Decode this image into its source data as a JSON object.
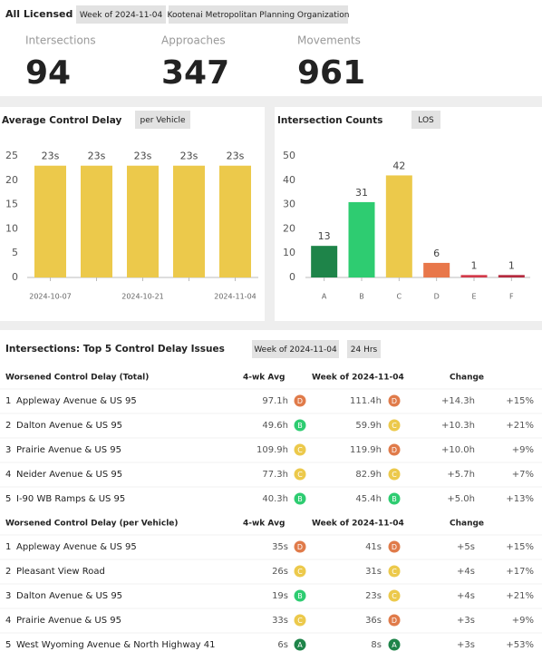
{
  "header": {
    "title": "All Licensed",
    "tags": [
      "Week of 2024-11-04",
      "Kootenai Metropolitan Planning Organization"
    ]
  },
  "kpis": [
    {
      "label": "Intersections",
      "value": "94"
    },
    {
      "label": "Approaches",
      "value": "347"
    },
    {
      "label": "Movements",
      "value": "961"
    }
  ],
  "chart_data": [
    {
      "type": "bar",
      "title": "Average Control Delay",
      "tag": "per Vehicle",
      "categories": [
        "2024-10-07",
        null,
        "2024-10-21",
        null,
        "2024-11-04"
      ],
      "values": [
        23,
        23,
        23,
        23,
        23
      ],
      "value_labels": [
        "23s",
        "23s",
        "23s",
        "23s",
        "23s"
      ],
      "color": "#ecc94b",
      "ylim": [
        0,
        25
      ],
      "yticks": [
        0,
        5,
        10,
        15,
        20,
        25
      ]
    },
    {
      "type": "bar",
      "title": "Intersection Counts",
      "tag": "LOS",
      "categories": [
        "A",
        "B",
        "C",
        "D",
        "E",
        "F"
      ],
      "values": [
        13,
        31,
        42,
        6,
        1,
        1
      ],
      "colors": [
        "#1e8449",
        "#2ecc71",
        "#ecc94b",
        "#e8774a",
        "#d33a4a",
        "#b52a3e"
      ],
      "ylim": [
        0,
        50
      ],
      "yticks": [
        0,
        10,
        20,
        30,
        40,
        50
      ]
    }
  ],
  "grade_colors": {
    "A": "#1e8449",
    "B": "#2ecc71",
    "C": "#ecc94b",
    "D": "#e07b4a"
  },
  "section": {
    "title": "Intersections: Top 5 Control Delay Issues",
    "tags": [
      "Week of 2024-11-04",
      "24 Hrs"
    ]
  },
  "tables": [
    {
      "columns": [
        "Worsened Control Delay (Total)",
        "4-wk Avg",
        "Week of 2024-11-04",
        "Change"
      ],
      "rows": [
        [
          "1",
          "Appleway Avenue & US 95",
          "97.1h",
          "D",
          "111.4h",
          "D",
          "+14.3h",
          "+15%"
        ],
        [
          "2",
          "Dalton Avenue & US 95",
          "49.6h",
          "B",
          "59.9h",
          "C",
          "+10.3h",
          "+21%"
        ],
        [
          "3",
          "Prairie Avenue & US 95",
          "109.9h",
          "C",
          "119.9h",
          "D",
          "+10.0h",
          "+9%"
        ],
        [
          "4",
          "Neider Avenue & US 95",
          "77.3h",
          "C",
          "82.9h",
          "C",
          "+5.7h",
          "+7%"
        ],
        [
          "5",
          "I-90 WB Ramps & US 95",
          "40.3h",
          "B",
          "45.4h",
          "B",
          "+5.0h",
          "+13%"
        ]
      ]
    },
    {
      "columns": [
        "Worsened Control Delay (per Vehicle)",
        "4-wk Avg",
        "Week of 2024-11-04",
        "Change"
      ],
      "rows": [
        [
          "1",
          "Appleway Avenue & US 95",
          "35s",
          "D",
          "41s",
          "D",
          "+5s",
          "+15%"
        ],
        [
          "2",
          "Pleasant View Road",
          "26s",
          "C",
          "31s",
          "C",
          "+4s",
          "+17%"
        ],
        [
          "3",
          "Dalton Avenue & US 95",
          "19s",
          "B",
          "23s",
          "C",
          "+4s",
          "+21%"
        ],
        [
          "4",
          "Prairie Avenue & US 95",
          "33s",
          "C",
          "36s",
          "D",
          "+3s",
          "+9%"
        ],
        [
          "5",
          "West Wyoming Avenue & North Highway 41",
          "6s",
          "A",
          "8s",
          "A",
          "+3s",
          "+53%"
        ]
      ]
    }
  ]
}
